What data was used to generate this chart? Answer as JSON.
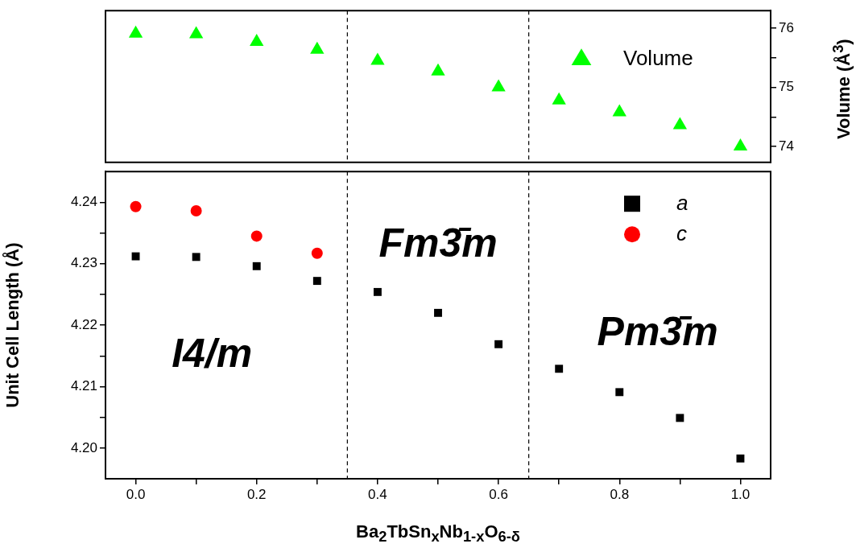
{
  "chart_data": [
    {
      "type": "scatter",
      "x": [
        0.0,
        0.1,
        0.2,
        0.3,
        0.4,
        0.5,
        0.6,
        0.7,
        0.8,
        0.9,
        1.0
      ],
      "series": [
        {
          "name": "Volume",
          "color": "#00ff00",
          "marker": "triangle",
          "axis": "y2",
          "values": [
            75.91,
            75.9,
            75.77,
            75.64,
            75.45,
            75.27,
            75.0,
            74.78,
            74.58,
            74.36,
            74.0
          ]
        }
      ],
      "xlim": [
        -0.05,
        1.05
      ],
      "y2lim": [
        73.73,
        76.3
      ],
      "y2ticks": [
        74,
        {
          "value": 74.5,
          "label": null
        },
        75,
        {
          "value": 75.5,
          "label": null
        },
        76
      ],
      "y2label": "Volume (Å$^{3}$)",
      "tick_labels": "y",
      "legend": "top right",
      "ref_lines": [
        {
          "axis": "x",
          "value": 0.35,
          "line_style": "dashed",
          "color": "#000000"
        },
        {
          "axis": "x",
          "value": 0.65,
          "line_style": "dashed",
          "color": "#000000"
        }
      ]
    },
    {
      "type": "scatter",
      "x": [
        0.0,
        0.1,
        0.2,
        0.3,
        0.4,
        0.5,
        0.6,
        0.7,
        0.8,
        0.9,
        1.0
      ],
      "series": [
        {
          "name": "a",
          "color": "#000000",
          "marker": "square",
          "values": [
            4.2312,
            4.2311,
            4.2296,
            4.2272,
            4.2254,
            4.222,
            4.2169,
            4.2129,
            4.2091,
            4.2049,
            4.1983
          ]
        },
        {
          "name": "c",
          "color": "#ff0000",
          "marker": "circle",
          "values": [
            4.2393,
            4.2386,
            4.2345,
            4.2317,
            null,
            null,
            null,
            null,
            null,
            null,
            null
          ]
        }
      ],
      "xlim": [
        -0.05,
        1.05
      ],
      "xticks": [
        {
          "value": 0,
          "label": "0.0"
        },
        {
          "value": 0.1,
          "label": null
        },
        0.2,
        {
          "value": 0.3,
          "label": null
        },
        0.4,
        {
          "value": 0.5,
          "label": null
        },
        0.6,
        {
          "value": 0.7,
          "label": null
        },
        0.8,
        {
          "value": 0.9,
          "label": null
        },
        {
          "value": 1,
          "label": "1.0"
        }
      ],
      "ylim": [
        4.195,
        4.245
      ],
      "yticks": [
        {
          "value": 4.2,
          "label": "4.20"
        },
        {
          "value": 4.205,
          "label": null
        },
        4.21,
        {
          "value": 4.215,
          "label": null
        },
        4.22,
        {
          "value": 4.225,
          "label": null
        },
        4.23,
        {
          "value": 4.235,
          "label": null
        },
        4.24
      ],
      "xlabel": "Ba$_{2}$TbSn$_{x}$Nb$_{1-x}$O$_{6-δ}$",
      "ylabel": "Unit Cell Length (Å)",
      "legend": "top right",
      "ref_lines": [
        {
          "axis": "x",
          "value": 0.35,
          "line_style": "dashed",
          "color": "#000000"
        },
        {
          "axis": "x",
          "value": 0.65,
          "line_style": "dashed",
          "color": "#000000"
        }
      ],
      "annotations": [
        "I4/m",
        "Fm3̄m",
        "Pm3̄m"
      ]
    }
  ]
}
